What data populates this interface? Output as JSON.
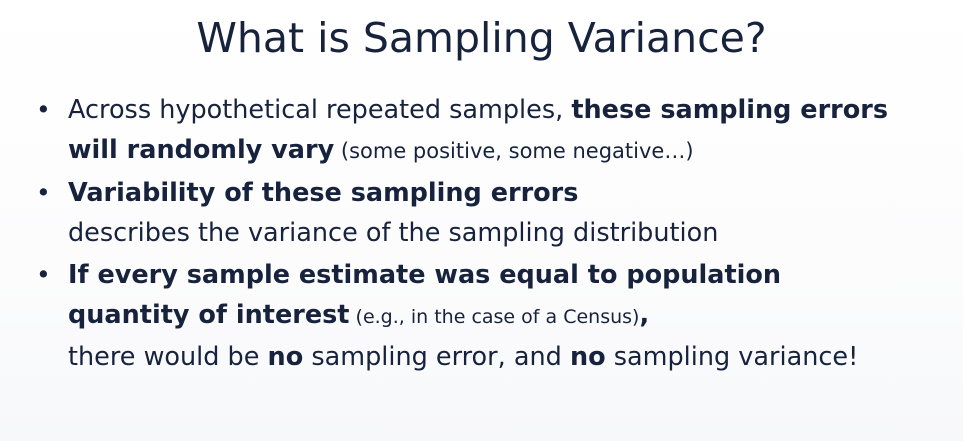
{
  "slide": {
    "title": "What is Sampling Variance?",
    "bullets": [
      {
        "bullet_glyph": "•",
        "line1_normal": "Across hypothetical repeated samples, ",
        "line1_bold": "these sampling errors",
        "line2_bold": "will randomly vary",
        "line2_small": " (some positive, some negative…)"
      },
      {
        "bullet_glyph": "•",
        "line1_bold": "Variability of these sampling errors",
        "line2_normal": "describes the variance of the sampling distribution"
      },
      {
        "bullet_glyph": "•",
        "line1_bold": "If every sample estimate was equal to population",
        "line2_bold": "quantity of interest",
        "line2_small": " (e.g., in the case of a Census)",
        "line2_comma": ",",
        "line3_normal_a": "there would be ",
        "line3_bold_a": "no",
        "line3_normal_b": " sampling error, and ",
        "line3_bold_b": "no",
        "line3_normal_c": " sampling variance!"
      }
    ]
  }
}
